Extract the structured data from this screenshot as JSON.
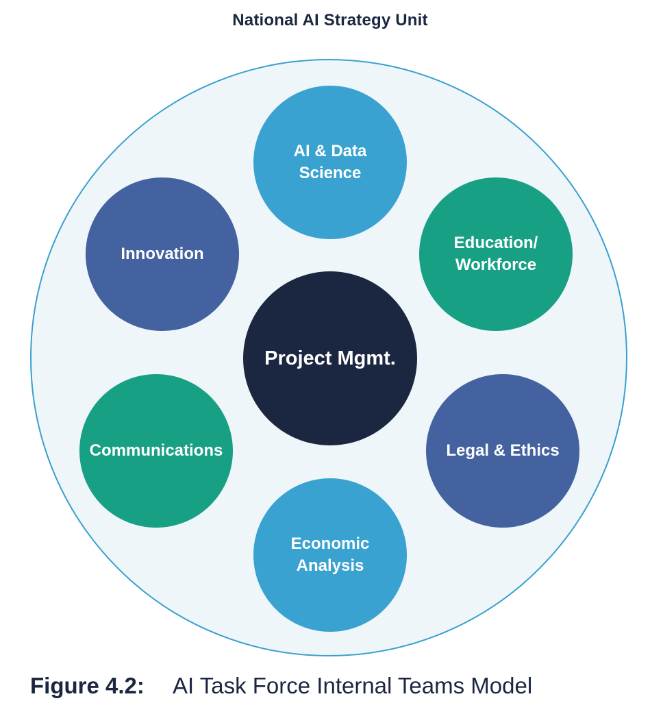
{
  "unit_title": "National AI Strategy Unit",
  "center": {
    "label": "Project Mgmt.",
    "color": "#1b2640"
  },
  "teams": {
    "ai_data_science": {
      "line1": "AI & Data",
      "line2": "Science",
      "color": "#3aa2d1"
    },
    "innovation": {
      "label": "Innovation",
      "color": "#44629f"
    },
    "education_workforce": {
      "line1": "Education/",
      "line2": "Workforce",
      "color": "#18a085"
    },
    "communications": {
      "label": "Communications",
      "color": "#18a085"
    },
    "legal_ethics": {
      "label": "Legal & Ethics",
      "color": "#44629f"
    },
    "economic_analysis": {
      "line1": "Economic",
      "line2": "Analysis",
      "color": "#3aa2d1"
    }
  },
  "outer_ring": {
    "fill": "#eef6f9",
    "stroke": "#3a9fcf"
  },
  "caption": {
    "label": "Figure 4.2:",
    "text": "AI Task Force Internal Teams Model"
  }
}
